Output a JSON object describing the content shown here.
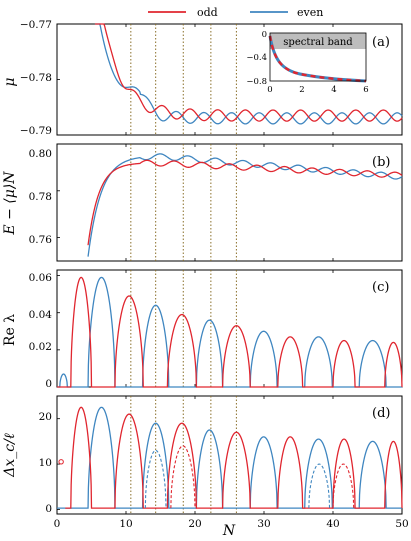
{
  "legend": {
    "odd_label": "odd",
    "even_label": "even"
  },
  "colors": {
    "odd": "#e0262f",
    "even": "#3f86c0",
    "vline": "#8a6f2a",
    "band": "#bdbdbd"
  },
  "chart_data": [
    {
      "id": "a",
      "type": "line",
      "panel_tag": "(a)",
      "ylabel": "μ",
      "xlim": [
        0,
        50
      ],
      "ylim": [
        -0.79,
        -0.77
      ],
      "yticks": [
        -0.77,
        -0.78,
        -0.79
      ],
      "ytick_labels": [
        "−0.77",
        "−0.78",
        "−0.79"
      ],
      "series": [
        {
          "name": "odd",
          "desc": "decays from above -0.77 near N=5 to ~-0.787 at N=14, then oscillates between -0.7855 and -0.7875 with period ~4"
        },
        {
          "name": "even",
          "desc": "decays, local plateau -0.7835 near N=11, then oscillates between -0.786 and -0.788 (out of phase with odd)"
        }
      ],
      "inset": {
        "label": "spectral band",
        "xlim": [
          0,
          6
        ],
        "ylim": [
          -0.8,
          0
        ],
        "xticks": [
          0,
          2,
          4,
          6
        ],
        "yticks": [
          0,
          -0.4,
          -0.8
        ],
        "ytick_labels": [
          "0",
          "−0.4",
          "−0.8"
        ]
      }
    },
    {
      "id": "b",
      "type": "line",
      "panel_tag": "(b)",
      "ylabel": "E − ⟨μ⟩N",
      "xlim": [
        0,
        50
      ],
      "ylim": [
        0.75,
        0.8
      ],
      "yticks": [
        0.8,
        0.78,
        0.76
      ],
      "ytick_labels": [
        "0.80",
        "0.78",
        "0.76"
      ],
      "series": [
        {
          "name": "odd",
          "desc": "rises from below 0.75 at N~3 to ~0.793, then slowly declines with oscillations to ~0.786 at N=50"
        },
        {
          "name": "even",
          "desc": "rises to ~0.795, then slowly declines with oscillations to ~0.783 at N=50"
        }
      ]
    },
    {
      "id": "c",
      "type": "line",
      "panel_tag": "(c)",
      "ylabel": "Re λ",
      "xlim": [
        0,
        50
      ],
      "ylim": [
        0,
        0.063
      ],
      "yticks": [
        0.06,
        0.04,
        0.02,
        0
      ],
      "ytick_labels": [
        "0.06",
        "0.04",
        "0.02",
        "0"
      ],
      "series": [
        {
          "name": "odd",
          "arches": [
            [
              2,
              5,
              0.059
            ],
            [
              8.4,
              12.5,
              0.049
            ],
            [
              16,
              20.2,
              0.039
            ],
            [
              24,
              28,
              0.033
            ],
            [
              32,
              35.6,
              0.027
            ],
            [
              40,
              43.2,
              0.025
            ],
            [
              47.5,
              50,
              0.024
            ]
          ]
        },
        {
          "name": "even",
          "arches": [
            [
              0.4,
              1.5,
              0.007
            ],
            [
              4.5,
              8.4,
              0.059
            ],
            [
              12.4,
              16.2,
              0.044
            ],
            [
              20.2,
              24,
              0.036
            ],
            [
              28,
              31.9,
              0.03
            ],
            [
              35.9,
              39.9,
              0.027
            ],
            [
              43.8,
              47.7,
              0.025
            ]
          ]
        }
      ]
    },
    {
      "id": "d",
      "type": "line",
      "panel_tag": "(d)",
      "ylabel": "Δx_c/ℓ",
      "xlabel": "N",
      "xlim": [
        0,
        50
      ],
      "ylim": [
        -1,
        25
      ],
      "yticks": [
        20,
        10,
        0
      ],
      "ytick_labels": [
        "20",
        "10",
        "0"
      ],
      "xticks": [
        0,
        10,
        20,
        30,
        40,
        50
      ],
      "xtick_labels": [
        "0",
        "10",
        "20",
        "30",
        "40",
        "50"
      ],
      "series": [
        {
          "name": "odd",
          "arches": [
            [
              2,
              5,
              22.5
            ],
            [
              8.4,
              12.5,
              21
            ],
            [
              16,
              20.2,
              19
            ],
            [
              24,
              28,
              17
            ],
            [
              32,
              35.6,
              16
            ],
            [
              40,
              43.2,
              15.5
            ],
            [
              47.5,
              50,
              15
            ]
          ]
        },
        {
          "name": "even",
          "arches": [
            [
              4.5,
              8.4,
              22.5
            ],
            [
              12.4,
              16.2,
              19
            ],
            [
              20.2,
              24,
              17.5
            ],
            [
              28,
              31.9,
              16
            ],
            [
              35.9,
              39.9,
              15.5
            ],
            [
              43.8,
              47.7,
              15
            ]
          ]
        },
        {
          "name": "odd (dashed)",
          "arches": [
            [
              16.5,
              20,
              14
            ],
            [
              40,
              43,
              10
            ]
          ]
        },
        {
          "name": "even (dashed)",
          "arches": [
            [
              12.8,
              15.8,
              13
            ],
            [
              36.5,
              39.5,
              10
            ]
          ]
        }
      ]
    }
  ],
  "vlines_x": [
    10.7,
    14.3,
    18.3,
    22.3,
    26
  ]
}
